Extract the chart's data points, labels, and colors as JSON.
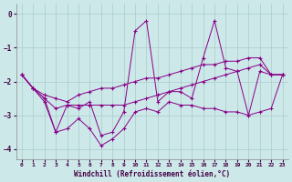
{
  "xlabel": "Windchill (Refroidissement éolien,°C)",
  "xlim": [
    -0.5,
    23.5
  ],
  "ylim": [
    -4.3,
    0.3
  ],
  "yticks": [
    0,
    -1,
    -2,
    -3,
    -4
  ],
  "xticks": [
    0,
    1,
    2,
    3,
    4,
    5,
    6,
    7,
    8,
    9,
    10,
    11,
    12,
    13,
    14,
    15,
    16,
    17,
    18,
    19,
    20,
    21,
    22,
    23
  ],
  "background_color": "#cce8e8",
  "line_color": "#880088",
  "grid_color": "#aacccc",
  "series": {
    "main": [
      -1.8,
      -2.2,
      -2.5,
      -3.5,
      -2.7,
      -2.8,
      -2.6,
      -3.6,
      -3.5,
      -2.9,
      -0.5,
      -0.2,
      -2.6,
      -2.3,
      -2.3,
      -2.5,
      -1.3,
      -0.2,
      -1.6,
      -1.7,
      -3.0,
      -1.7,
      -1.8,
      -1.8
    ],
    "min": [
      -1.8,
      -2.2,
      -2.6,
      -3.5,
      -3.4,
      -3.1,
      -3.4,
      -3.9,
      -3.7,
      -3.4,
      -2.9,
      -2.8,
      -2.9,
      -2.6,
      -2.7,
      -2.7,
      -2.8,
      -2.8,
      -2.9,
      -2.9,
      -3.0,
      -2.9,
      -2.8,
      -1.8
    ],
    "max": [
      -1.8,
      -2.2,
      -2.4,
      -2.5,
      -2.6,
      -2.4,
      -2.3,
      -2.2,
      -2.2,
      -2.1,
      -2.0,
      -1.9,
      -1.9,
      -1.8,
      -1.7,
      -1.6,
      -1.5,
      -1.5,
      -1.4,
      -1.4,
      -1.3,
      -1.3,
      -1.8,
      -1.8
    ],
    "avg": [
      -1.8,
      -2.2,
      -2.5,
      -2.8,
      -2.7,
      -2.7,
      -2.7,
      -2.7,
      -2.7,
      -2.7,
      -2.6,
      -2.5,
      -2.4,
      -2.3,
      -2.2,
      -2.1,
      -2.0,
      -1.9,
      -1.8,
      -1.7,
      -1.6,
      -1.5,
      -1.8,
      -1.8
    ]
  }
}
